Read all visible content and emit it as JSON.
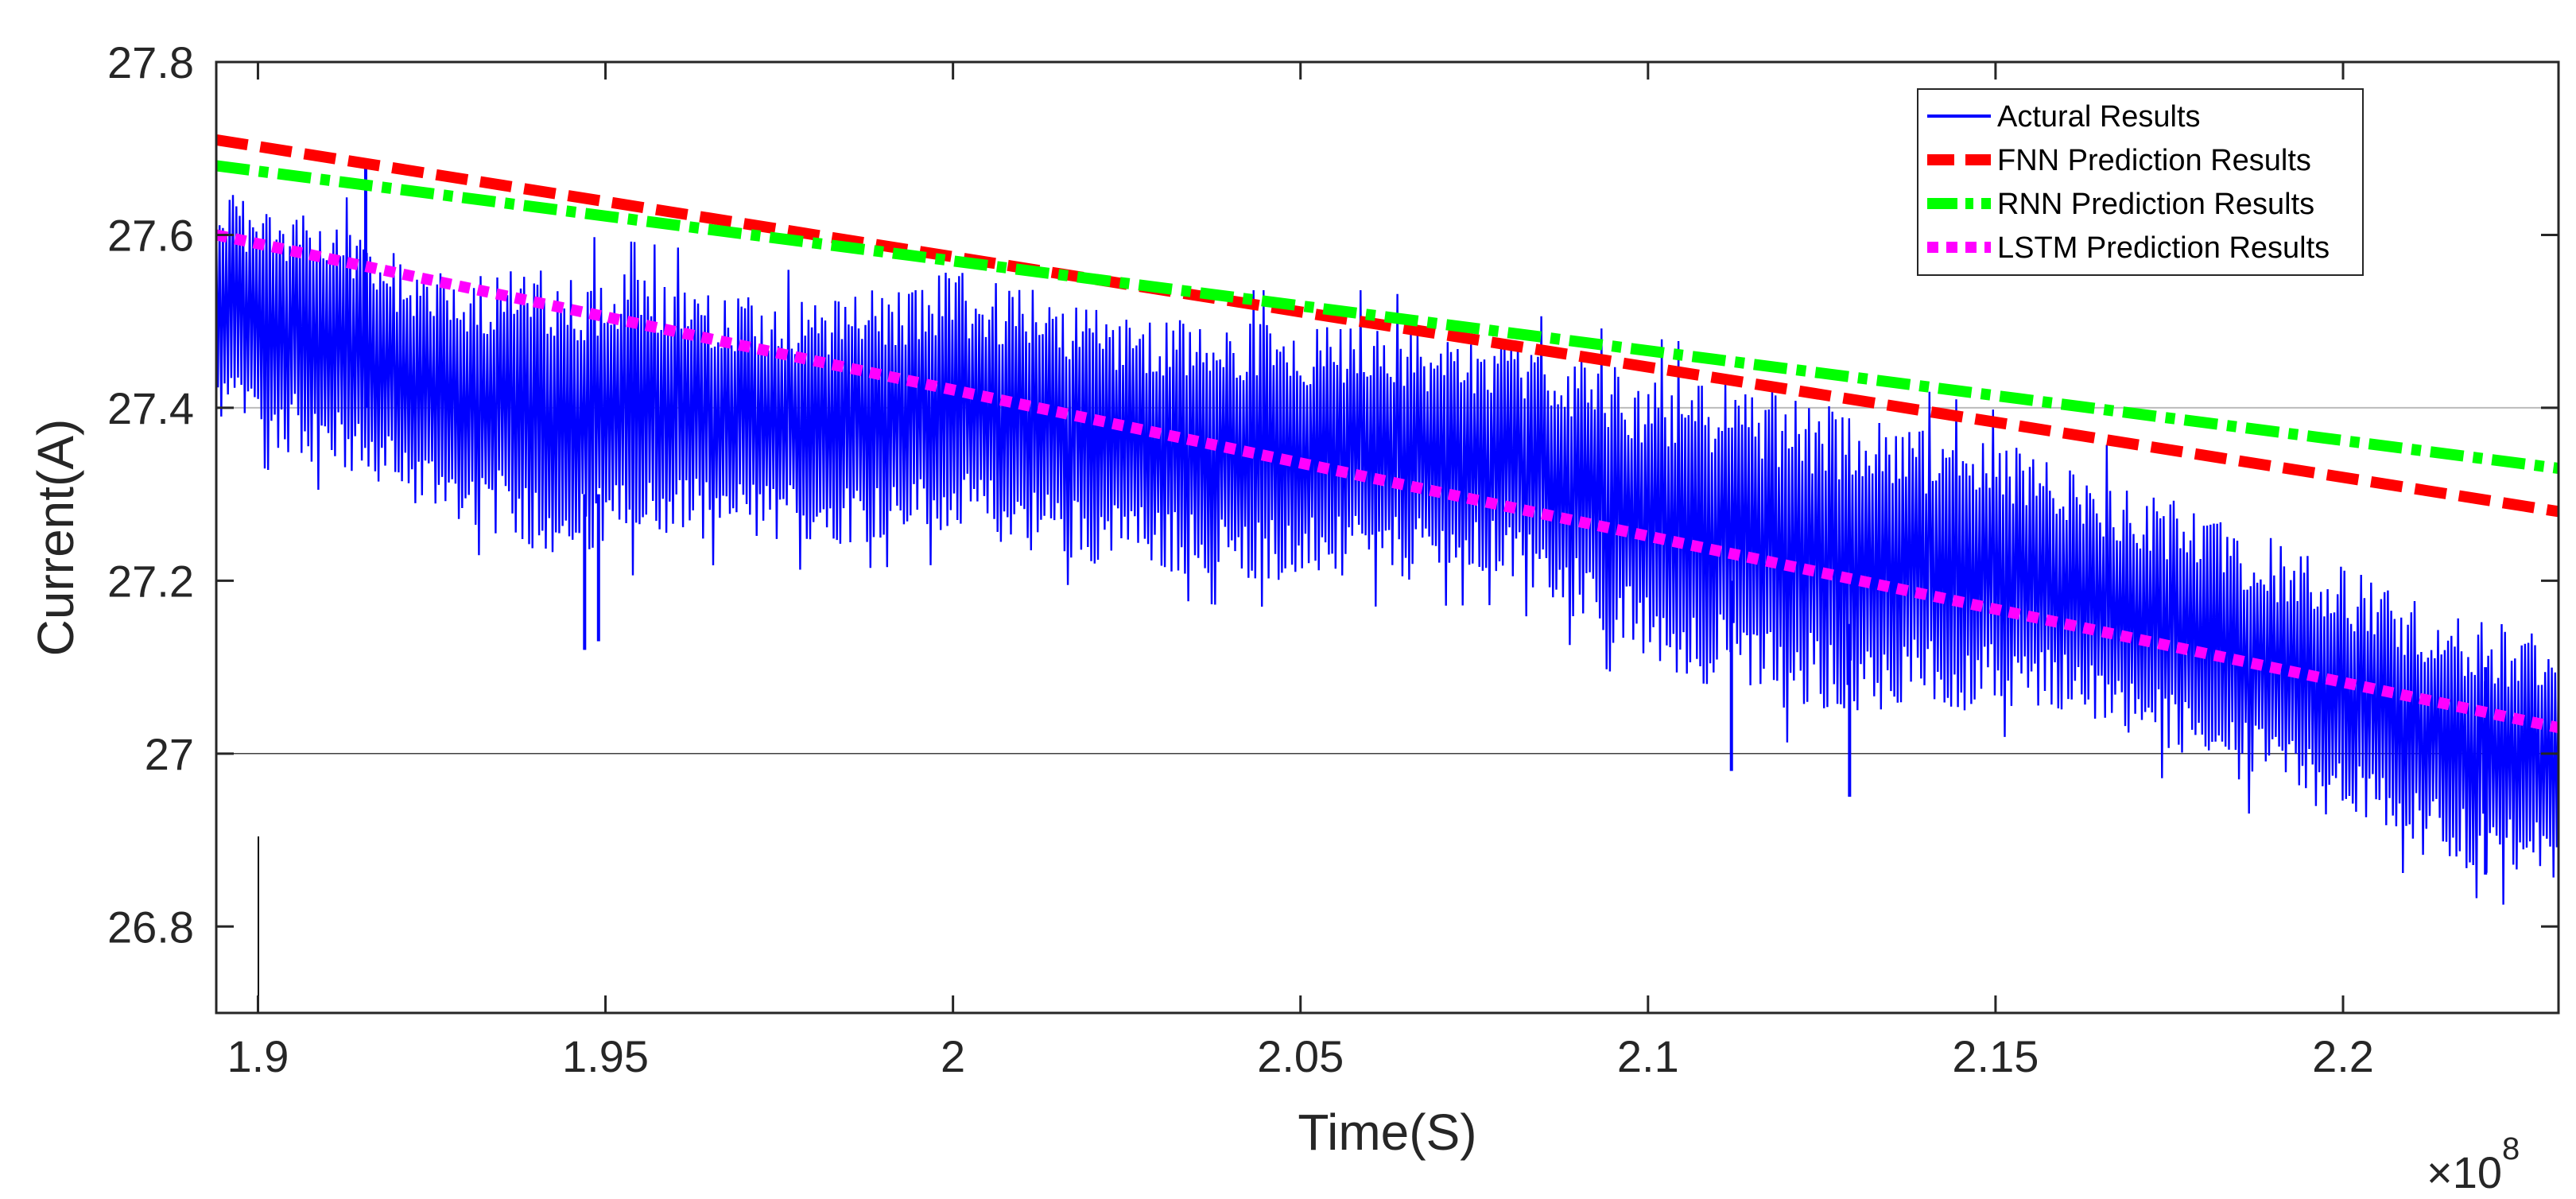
{
  "chart_data": {
    "type": "line",
    "xlabel": "Time(S)",
    "ylabel": "Current(A)",
    "x_multiplier_base": "×10",
    "x_multiplier_exp": "8",
    "xlim": [
      1.894,
      2.231
    ],
    "ylim": [
      26.7,
      27.8
    ],
    "x_ticks": [
      1.9,
      1.95,
      2.0,
      2.05,
      2.1,
      2.15,
      2.2
    ],
    "x_tick_labels": [
      "1.9",
      "1.95",
      "2",
      "2.05",
      "2.1",
      "2.15",
      "2.2"
    ],
    "y_ticks": [
      26.8,
      27.0,
      27.2,
      27.4,
      27.6,
      27.8
    ],
    "y_tick_labels": [
      "26.8",
      "27",
      "27.2",
      "27.4",
      "27.6",
      "27.8"
    ],
    "gridlines_y": [
      27.0,
      27.4
    ],
    "legend_position": "top-right",
    "series": [
      {
        "name": "Actural Results",
        "color": "#0000ff",
        "style": "solid",
        "envelope": [
          {
            "x": 1.894,
            "low": 27.38,
            "high": 27.66
          },
          {
            "x": 1.91,
            "low": 27.33,
            "high": 27.62
          },
          {
            "x": 1.925,
            "low": 27.28,
            "high": 27.56
          },
          {
            "x": 1.945,
            "low": 27.22,
            "high": 27.56
          },
          {
            "x": 1.96,
            "low": 27.25,
            "high": 27.55
          },
          {
            "x": 1.98,
            "low": 27.24,
            "high": 27.52
          },
          {
            "x": 2.0,
            "low": 27.25,
            "high": 27.56
          },
          {
            "x": 2.02,
            "low": 27.22,
            "high": 27.52
          },
          {
            "x": 2.04,
            "low": 27.2,
            "high": 27.5
          },
          {
            "x": 2.06,
            "low": 27.2,
            "high": 27.5
          },
          {
            "x": 2.08,
            "low": 27.2,
            "high": 27.48
          },
          {
            "x": 2.1,
            "low": 27.1,
            "high": 27.44
          },
          {
            "x": 2.12,
            "low": 27.05,
            "high": 27.42
          },
          {
            "x": 2.14,
            "low": 27.05,
            "high": 27.38
          },
          {
            "x": 2.16,
            "low": 27.05,
            "high": 27.34
          },
          {
            "x": 2.18,
            "low": 26.98,
            "high": 27.28
          },
          {
            "x": 2.2,
            "low": 26.92,
            "high": 27.22
          },
          {
            "x": 2.215,
            "low": 26.87,
            "high": 27.16
          },
          {
            "x": 2.231,
            "low": 26.84,
            "high": 27.14
          }
        ],
        "spikes": [
          {
            "x": 1.9155,
            "low": 27.4,
            "high": 27.68
          },
          {
            "x": 1.947,
            "low": 27.12,
            "high": 27.3
          },
          {
            "x": 1.949,
            "low": 27.13,
            "high": 27.3
          },
          {
            "x": 2.112,
            "low": 26.98,
            "high": 27.2
          },
          {
            "x": 2.129,
            "low": 26.95,
            "high": 27.15
          },
          {
            "x": 2.2205,
            "low": 26.86,
            "high": 27.1
          }
        ]
      },
      {
        "name": "FNN Prediction Results",
        "color": "#ff0000",
        "style": "dashed",
        "x": [
          1.894,
          2.231
        ],
        "y": [
          27.71,
          27.28
        ]
      },
      {
        "name": "RNN Prediction Results",
        "color": "#00ff00",
        "style": "dash-dot",
        "x": [
          1.894,
          2.231
        ],
        "y": [
          27.68,
          27.33
        ]
      },
      {
        "name": "LSTM Prediction Results",
        "color": "#ff00ff",
        "style": "dotted",
        "x": [
          1.894,
          2.231
        ],
        "y": [
          27.6,
          27.03
        ]
      }
    ]
  }
}
